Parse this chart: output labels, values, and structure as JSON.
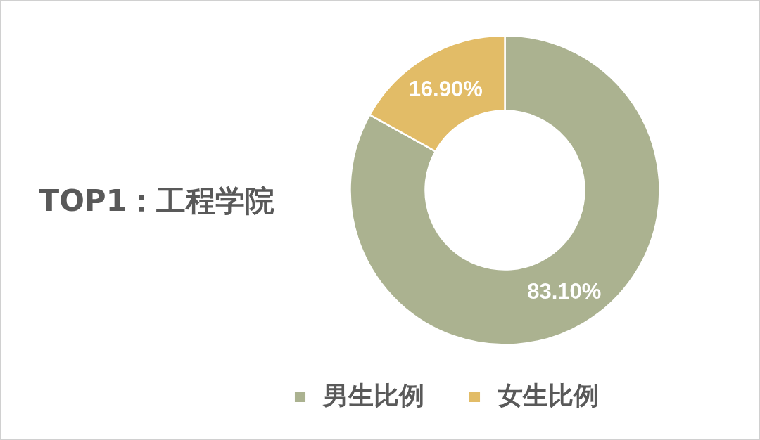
{
  "chart_data": {
    "type": "donut",
    "title": "TOP1：工程学院",
    "categories": [
      "男生比例",
      "女生比例"
    ],
    "values": [
      83.1,
      16.9
    ],
    "colors": [
      "#abb290",
      "#e2bc67"
    ],
    "value_labels": [
      "83.10%",
      "16.90%"
    ],
    "legend": "bottom"
  }
}
